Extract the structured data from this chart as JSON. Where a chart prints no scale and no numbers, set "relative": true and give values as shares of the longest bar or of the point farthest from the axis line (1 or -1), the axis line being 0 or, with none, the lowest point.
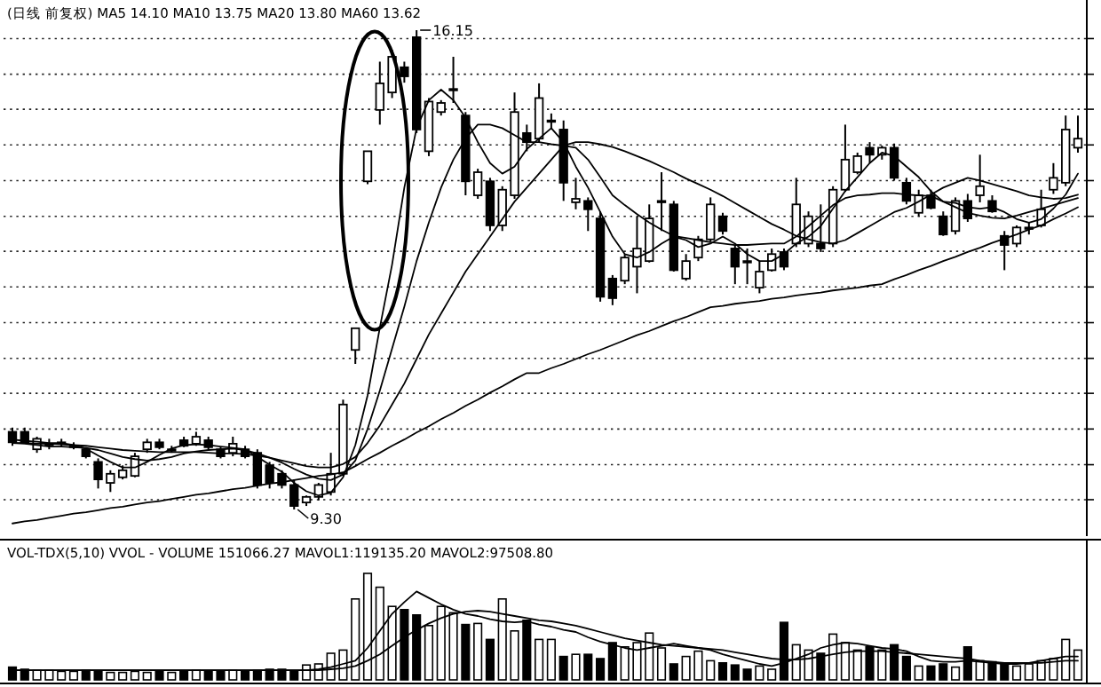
{
  "chart_data": [
    {
      "type": "candlestick",
      "title": "(日线 前复权) MA5 14.10 MA10 13.75 MA20 13.80 MA60 13.62",
      "categories": [
        null,
        null,
        null,
        null,
        null,
        null,
        null,
        null,
        null,
        null,
        null,
        null,
        null,
        null,
        null,
        null,
        null,
        null,
        null,
        null,
        null,
        null,
        null,
        null,
        null,
        null,
        null,
        null,
        null,
        null,
        null,
        null,
        null,
        null,
        null,
        null,
        null,
        null,
        null,
        null,
        null,
        null,
        null,
        null,
        null,
        null,
        null,
        null,
        null,
        null,
        null,
        null,
        null,
        null,
        null,
        null,
        null,
        null,
        null,
        null,
        null,
        null,
        null,
        null,
        null,
        null,
        null,
        null,
        null,
        null,
        null,
        null,
        null,
        null,
        null,
        null,
        null,
        null,
        null,
        null,
        null,
        null,
        null,
        null,
        null,
        null,
        null,
        null
      ],
      "ohlc": [
        [
          10.41,
          10.47,
          10.21,
          10.26
        ],
        [
          10.41,
          10.47,
          10.24,
          10.26
        ],
        [
          10.16,
          10.34,
          10.11,
          10.31
        ],
        [
          10.24,
          10.31,
          10.16,
          10.24
        ],
        [
          10.26,
          10.31,
          10.19,
          10.26
        ],
        [
          10.21,
          10.26,
          10.16,
          10.21
        ],
        [
          10.16,
          10.19,
          10.03,
          10.06
        ],
        [
          9.98,
          10.03,
          9.6,
          9.73
        ],
        [
          9.68,
          9.86,
          9.55,
          9.81
        ],
        [
          9.76,
          9.93,
          9.73,
          9.86
        ],
        [
          9.78,
          10.11,
          9.76,
          10.06
        ],
        [
          10.16,
          10.31,
          10.11,
          10.26
        ],
        [
          10.26,
          10.31,
          10.16,
          10.19
        ],
        [
          10.16,
          10.21,
          10.11,
          10.16
        ],
        [
          10.29,
          10.34,
          10.19,
          10.21
        ],
        [
          10.24,
          10.41,
          10.21,
          10.34
        ],
        [
          10.29,
          10.34,
          10.16,
          10.19
        ],
        [
          10.16,
          10.19,
          10.03,
          10.06
        ],
        [
          10.11,
          10.34,
          10.06,
          10.24
        ],
        [
          10.16,
          10.21,
          10.03,
          10.06
        ],
        [
          10.11,
          10.16,
          9.6,
          9.65
        ],
        [
          9.93,
          9.98,
          9.6,
          9.68
        ],
        [
          9.81,
          9.86,
          9.6,
          9.65
        ],
        [
          9.65,
          9.73,
          9.3,
          9.35
        ],
        [
          9.4,
          9.5,
          9.35,
          9.48
        ],
        [
          9.48,
          9.68,
          9.43,
          9.65
        ],
        [
          9.55,
          10.11,
          9.5,
          9.81
        ],
        [
          9.81,
          10.87,
          9.78,
          10.8
        ],
        [
          11.58,
          11.89,
          11.38,
          11.89
        ],
        [
          13.99,
          14.42,
          13.95,
          14.42
        ],
        [
          15.01,
          15.7,
          14.8,
          15.39
        ],
        [
          15.26,
          15.87,
          15.18,
          15.77
        ],
        [
          15.62,
          15.7,
          15.4,
          15.49
        ],
        [
          16.05,
          16.15,
          14.68,
          14.73
        ],
        [
          14.42,
          15.18,
          14.35,
          15.13
        ],
        [
          14.98,
          15.15,
          14.93,
          15.11
        ],
        [
          15.31,
          15.77,
          15.11,
          15.31
        ],
        [
          14.93,
          14.98,
          13.79,
          13.99
        ],
        [
          13.79,
          14.17,
          13.74,
          14.12
        ],
        [
          13.99,
          14.04,
          13.28,
          13.36
        ],
        [
          13.36,
          13.92,
          13.28,
          13.87
        ],
        [
          13.79,
          15.26,
          13.74,
          14.98
        ],
        [
          14.68,
          14.8,
          14.42,
          14.55
        ],
        [
          14.6,
          15.39,
          14.55,
          15.18
        ],
        [
          14.86,
          14.96,
          14.73,
          14.86
        ],
        [
          14.73,
          14.86,
          13.71,
          13.97
        ],
        [
          13.69,
          14.04,
          13.59,
          13.74
        ],
        [
          13.71,
          13.76,
          13.28,
          13.59
        ],
        [
          13.46,
          13.56,
          12.27,
          12.34
        ],
        [
          12.6,
          12.65,
          12.22,
          12.32
        ],
        [
          12.57,
          12.95,
          12.52,
          12.9
        ],
        [
          12.77,
          13.49,
          12.39,
          13.03
        ],
        [
          12.85,
          13.66,
          12.83,
          13.46
        ],
        [
          13.71,
          14.12,
          13.28,
          13.71
        ],
        [
          13.66,
          13.71,
          12.7,
          12.72
        ],
        [
          12.6,
          12.95,
          12.57,
          12.85
        ],
        [
          12.9,
          13.21,
          12.85,
          13.16
        ],
        [
          13.16,
          13.76,
          13.13,
          13.66
        ],
        [
          13.49,
          13.54,
          13.23,
          13.28
        ],
        [
          13.03,
          13.08,
          12.52,
          12.77
        ],
        [
          12.85,
          13.03,
          12.52,
          12.83
        ],
        [
          12.47,
          12.85,
          12.39,
          12.7
        ],
        [
          12.72,
          13.03,
          12.7,
          12.95
        ],
        [
          12.98,
          13.03,
          12.72,
          12.77
        ],
        [
          13.1,
          14.04,
          13.05,
          13.66
        ],
        [
          13.1,
          13.56,
          13.05,
          13.49
        ],
        [
          13.1,
          13.66,
          12.98,
          13.03
        ],
        [
          13.1,
          13.92,
          13.05,
          13.87
        ],
        [
          13.87,
          14.8,
          13.84,
          14.3
        ],
        [
          14.12,
          14.4,
          14.09,
          14.35
        ],
        [
          14.47,
          14.55,
          14.25,
          14.37
        ],
        [
          14.37,
          14.5,
          14.3,
          14.47
        ],
        [
          14.47,
          14.53,
          14.0,
          14.04
        ],
        [
          13.97,
          14.04,
          13.66,
          13.71
        ],
        [
          13.54,
          13.87,
          13.49,
          13.79
        ],
        [
          13.79,
          13.87,
          13.59,
          13.61
        ],
        [
          13.49,
          13.56,
          13.21,
          13.23
        ],
        [
          13.28,
          13.76,
          13.23,
          13.71
        ],
        [
          13.71,
          13.81,
          13.41,
          13.46
        ],
        [
          13.79,
          14.37,
          13.69,
          13.92
        ],
        [
          13.71,
          13.79,
          13.54,
          13.56
        ],
        [
          13.21,
          13.28,
          12.72,
          13.08
        ],
        [
          13.1,
          13.36,
          13.05,
          13.33
        ],
        [
          13.33,
          13.41,
          13.23,
          13.33
        ],
        [
          13.36,
          13.87,
          13.33,
          13.59
        ],
        [
          13.87,
          14.25,
          13.81,
          14.04
        ],
        [
          13.97,
          14.93,
          13.92,
          14.73
        ],
        [
          14.47,
          14.93,
          14.4,
          14.6
        ]
      ],
      "series": [
        {
          "type": "line",
          "color": "#000000",
          "values": [
            10.3,
            10.28,
            10.27,
            10.25,
            10.25,
            10.22,
            10.17,
            10.07,
            9.98,
            9.9,
            9.9,
            9.98,
            10.08,
            10.17,
            10.22,
            10.23,
            10.22,
            10.2,
            10.18,
            10.16,
            10.05,
            9.94,
            9.84,
            9.68,
            9.56,
            9.5,
            9.54,
            9.76,
            10.22,
            10.93,
            11.9,
            12.8,
            13.9,
            14.75,
            15.15,
            15.3,
            15.15,
            14.9,
            14.55,
            14.25,
            14.1,
            14.2,
            14.45,
            14.6,
            14.75,
            14.55,
            14.2,
            13.9,
            13.55,
            13.2,
            12.95,
            12.9,
            12.98,
            13.1,
            13.2,
            13.15,
            13.05,
            13.1,
            13.2,
            13.1,
            12.95,
            12.85,
            12.85,
            12.95,
            13.1,
            13.2,
            13.35,
            13.6,
            13.85,
            14.05,
            14.25,
            14.4,
            14.35,
            14.2,
            14.05,
            13.85,
            13.7,
            13.68,
            13.62,
            13.6,
            13.62,
            13.55,
            13.45,
            13.4,
            13.45,
            13.6,
            13.8,
            14.1
          ]
        },
        {
          "type": "line",
          "color": "#000000",
          "values": [
            10.25,
            10.24,
            10.22,
            10.2,
            10.2,
            10.19,
            10.18,
            10.15,
            10.1,
            10.05,
            10.02,
            10.0,
            10.02,
            10.05,
            10.1,
            10.13,
            10.15,
            10.16,
            10.17,
            10.15,
            10.1,
            10.04,
            9.97,
            9.88,
            9.8,
            9.74,
            9.72,
            9.8,
            10.0,
            10.45,
            11.0,
            11.6,
            12.2,
            12.85,
            13.4,
            13.9,
            14.3,
            14.6,
            14.8,
            14.8,
            14.75,
            14.65,
            14.55,
            14.55,
            14.52,
            14.5,
            14.47,
            14.3,
            14.05,
            13.79,
            13.65,
            13.52,
            13.4,
            13.3,
            13.21,
            13.18,
            13.15,
            13.12,
            13.1,
            13.08,
            13.08,
            13.09,
            13.1,
            13.1,
            13.2,
            13.35,
            13.5,
            13.65,
            13.75,
            13.79,
            13.8,
            13.82,
            13.82,
            13.8,
            13.79,
            13.78,
            13.7,
            13.62,
            13.54,
            13.5,
            13.47,
            13.46,
            13.5,
            13.55,
            13.6,
            13.65,
            13.7,
            13.75
          ]
        },
        {
          "type": "line",
          "color": "#000000",
          "values": [
            10.25,
            10.25,
            10.24,
            10.24,
            10.23,
            10.22,
            10.21,
            10.19,
            10.17,
            10.15,
            10.14,
            10.13,
            10.12,
            10.12,
            10.12,
            10.12,
            10.11,
            10.1,
            10.1,
            10.09,
            10.07,
            10.04,
            10.0,
            9.96,
            9.92,
            9.9,
            9.9,
            9.95,
            10.05,
            10.25,
            10.5,
            10.8,
            11.1,
            11.45,
            11.8,
            12.1,
            12.4,
            12.7,
            12.95,
            13.2,
            13.45,
            13.7,
            13.9,
            14.1,
            14.3,
            14.5,
            14.55,
            14.55,
            14.52,
            14.48,
            14.42,
            14.35,
            14.28,
            14.2,
            14.12,
            14.03,
            13.95,
            13.87,
            13.78,
            13.68,
            13.58,
            13.48,
            13.38,
            13.3,
            13.21,
            13.16,
            13.12,
            13.1,
            13.15,
            13.25,
            13.35,
            13.45,
            13.55,
            13.61,
            13.7,
            13.8,
            13.9,
            13.97,
            14.04,
            14.0,
            13.95,
            13.9,
            13.85,
            13.79,
            13.76,
            13.74,
            13.75,
            13.8
          ]
        },
        {
          "type": "line",
          "color": "#000000",
          "values": [
            9.1,
            9.13,
            9.15,
            9.18,
            9.21,
            9.24,
            9.26,
            9.29,
            9.32,
            9.34,
            9.37,
            9.4,
            9.42,
            9.45,
            9.48,
            9.51,
            9.53,
            9.56,
            9.59,
            9.61,
            9.64,
            9.67,
            9.69,
            9.72,
            9.75,
            9.78,
            9.8,
            9.83,
            9.92,
            10.02,
            10.11,
            10.21,
            10.3,
            10.4,
            10.49,
            10.59,
            10.68,
            10.78,
            10.87,
            10.97,
            11.06,
            11.16,
            11.25,
            11.25,
            11.32,
            11.38,
            11.45,
            11.52,
            11.58,
            11.65,
            11.72,
            11.79,
            11.85,
            11.92,
            11.99,
            12.05,
            12.12,
            12.19,
            12.21,
            12.24,
            12.26,
            12.28,
            12.31,
            12.33,
            12.36,
            12.38,
            12.4,
            12.43,
            12.45,
            12.47,
            12.5,
            12.52,
            12.59,
            12.65,
            12.72,
            12.78,
            12.85,
            12.91,
            12.98,
            13.04,
            13.11,
            13.17,
            13.23,
            13.3,
            13.36,
            13.45,
            13.53,
            13.62
          ]
        }
      ],
      "yticks": [
        {
          "value": 16.03,
          "label": null
        },
        {
          "value": 15.52,
          "label": null
        },
        {
          "value": 15.02,
          "label": null
        },
        {
          "value": 14.51,
          "label": null
        },
        {
          "value": 14.0,
          "label": null
        },
        {
          "value": 13.49,
          "label": null
        },
        {
          "value": 12.99,
          "label": null
        },
        {
          "value": 12.48,
          "label": null
        },
        {
          "value": 11.97,
          "label": null
        },
        {
          "value": 11.46,
          "label": null
        },
        {
          "value": 10.96,
          "label": null
        },
        {
          "value": 10.45,
          "label": null
        },
        {
          "value": 9.94,
          "label": null
        },
        {
          "value": 9.44,
          "label": null
        }
      ],
      "grid": "y",
      "annotations": [
        "16.15",
        "9.30"
      ]
    },
    {
      "type": "bar",
      "relative": true,
      "title": "VOL-TDX(5,10) VVOL - VOLUME 151066.27 MAVOL1:119135.20 MAVOL2:97508.80",
      "categories": [
        null,
        null,
        null,
        null,
        null,
        null,
        null,
        null,
        null,
        null,
        null,
        null,
        null,
        null,
        null,
        null,
        null,
        null,
        null,
        null,
        null,
        null,
        null,
        null,
        null,
        null,
        null,
        null,
        null,
        null,
        null,
        null,
        null,
        null,
        null,
        null,
        null,
        null,
        null,
        null,
        null,
        null,
        null,
        null,
        null,
        null,
        null,
        null,
        null,
        null,
        null,
        null,
        null,
        null,
        null,
        null,
        null,
        null,
        null,
        null,
        null,
        null,
        null,
        null,
        null,
        null,
        null,
        null,
        null,
        null,
        null,
        null,
        null,
        null,
        null,
        null,
        null,
        null,
        null,
        null,
        null,
        null,
        null,
        null,
        null,
        null,
        null,
        null
      ],
      "series": [
        {
          "type": "bar",
          "values": [
            0.12,
            0.1,
            0.09,
            0.09,
            0.08,
            0.08,
            0.09,
            0.08,
            0.07,
            0.07,
            0.08,
            0.07,
            0.08,
            0.07,
            0.08,
            0.09,
            0.08,
            0.08,
            0.09,
            0.08,
            0.09,
            0.1,
            0.1,
            0.08,
            0.14,
            0.15,
            0.25,
            0.28,
            0.76,
            1,
            0.87,
            0.69,
            0.66,
            0.61,
            0.51,
            0.69,
            0.63,
            0.52,
            0.53,
            0.38,
            0.76,
            0.46,
            0.56,
            0.38,
            0.38,
            0.22,
            0.24,
            0.24,
            0.2,
            0.35,
            0.31,
            0.35,
            0.44,
            0.3,
            0.15,
            0.22,
            0.27,
            0.18,
            0.16,
            0.14,
            0.1,
            0.13,
            0.1,
            0.54,
            0.33,
            0.28,
            0.25,
            0.43,
            0.35,
            0.28,
            0.31,
            0.28,
            0.33,
            0.22,
            0.13,
            0.13,
            0.15,
            0.12,
            0.31,
            0.18,
            0.17,
            0.15,
            0.13,
            0.15,
            0.18,
            0.2,
            0.38,
            0.28
          ],
          "colors": [
            "#000000",
            "#000000",
            "#ffffff",
            "#ffffff",
            "#ffffff",
            "#ffffff",
            "#000000",
            "#000000",
            "#ffffff",
            "#ffffff",
            "#ffffff",
            "#ffffff",
            "#000000",
            "#ffffff",
            "#000000",
            "#ffffff",
            "#000000",
            "#000000",
            "#ffffff",
            "#000000",
            "#000000",
            "#000000",
            "#000000",
            "#000000",
            "#ffffff",
            "#ffffff",
            "#ffffff",
            "#ffffff",
            "#ffffff",
            "#ffffff",
            "#ffffff",
            "#ffffff",
            "#000000",
            "#000000",
            "#ffffff",
            "#ffffff",
            "#ffffff",
            "#000000",
            "#ffffff",
            "#000000",
            "#ffffff",
            "#ffffff",
            "#000000",
            "#ffffff",
            "#ffffff",
            "#000000",
            "#ffffff",
            "#000000",
            "#000000",
            "#000000",
            "#ffffff",
            "#ffffff",
            "#ffffff",
            "#ffffff",
            "#000000",
            "#ffffff",
            "#ffffff",
            "#ffffff",
            "#000000",
            "#000000",
            "#000000",
            "#ffffff",
            "#ffffff",
            "#000000",
            "#ffffff",
            "#ffffff",
            "#000000",
            "#ffffff",
            "#ffffff",
            "#ffffff",
            "#000000",
            "#ffffff",
            "#000000",
            "#000000",
            "#ffffff",
            "#000000",
            "#000000",
            "#ffffff",
            "#000000",
            "#ffffff",
            "#000000",
            "#000000",
            "#ffffff",
            "#ffffff",
            "#ffffff",
            "#ffffff",
            "#ffffff",
            "#ffffff"
          ]
        },
        {
          "type": "line",
          "color": "#000000",
          "values": [
            0.09,
            0.09,
            0.09,
            0.09,
            0.09,
            0.09,
            0.09,
            0.09,
            0.09,
            0.09,
            0.09,
            0.09,
            0.09,
            0.09,
            0.09,
            0.09,
            0.09,
            0.09,
            0.09,
            0.09,
            0.09,
            0.09,
            0.09,
            0.09,
            0.09,
            0.1,
            0.12,
            0.15,
            0.18,
            0.3,
            0.46,
            0.62,
            0.73,
            0.83,
            0.77,
            0.71,
            0.66,
            0.62,
            0.6,
            0.57,
            0.55,
            0.54,
            0.55,
            0.52,
            0.5,
            0.47,
            0.45,
            0.4,
            0.36,
            0.33,
            0.3,
            0.28,
            0.3,
            0.32,
            0.34,
            0.32,
            0.3,
            0.28,
            0.24,
            0.21,
            0.18,
            0.15,
            0.13,
            0.16,
            0.2,
            0.24,
            0.3,
            0.33,
            0.35,
            0.34,
            0.32,
            0.3,
            0.29,
            0.27,
            0.22,
            0.18,
            0.17,
            0.17,
            0.18,
            0.17,
            0.16,
            0.15,
            0.15,
            0.16,
            0.18,
            0.2,
            0.22,
            0.22
          ]
        },
        {
          "type": "line",
          "color": "#000000",
          "values": [
            0.09,
            0.09,
            0.09,
            0.09,
            0.09,
            0.09,
            0.09,
            0.09,
            0.09,
            0.09,
            0.09,
            0.09,
            0.09,
            0.09,
            0.09,
            0.09,
            0.09,
            0.09,
            0.09,
            0.09,
            0.09,
            0.09,
            0.09,
            0.09,
            0.09,
            0.09,
            0.1,
            0.11,
            0.13,
            0.18,
            0.24,
            0.32,
            0.4,
            0.47,
            0.53,
            0.58,
            0.62,
            0.64,
            0.65,
            0.64,
            0.62,
            0.6,
            0.58,
            0.56,
            0.55,
            0.53,
            0.51,
            0.48,
            0.45,
            0.42,
            0.39,
            0.37,
            0.35,
            0.33,
            0.32,
            0.31,
            0.3,
            0.29,
            0.28,
            0.26,
            0.24,
            0.22,
            0.2,
            0.19,
            0.19,
            0.2,
            0.22,
            0.24,
            0.26,
            0.27,
            0.27,
            0.27,
            0.26,
            0.25,
            0.24,
            0.23,
            0.22,
            0.21,
            0.2,
            0.18,
            0.17,
            0.16,
            0.16,
            0.16,
            0.16,
            0.17,
            0.18,
            0.18
          ]
        }
      ]
    }
  ]
}
